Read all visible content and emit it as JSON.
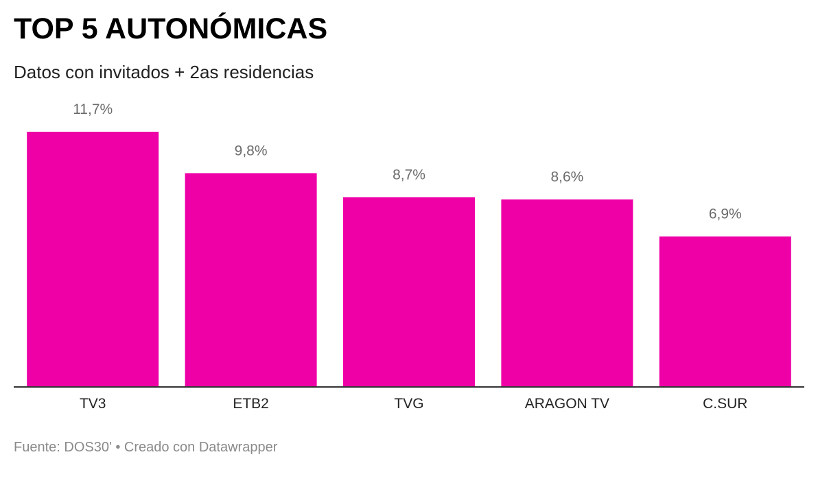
{
  "chart_data": {
    "type": "bar",
    "title": "TOP 5 AUTONÓMICAS",
    "subtitle": "Datos con invitados + 2as residencias",
    "categories": [
      "TV3",
      "ETB2",
      "TVG",
      "ARAGON TV",
      "C.SUR"
    ],
    "values": [
      11.7,
      9.8,
      8.7,
      8.6,
      6.9
    ],
    "value_labels": [
      "11,7%",
      "9,8%",
      "8,7%",
      "8,6%",
      "6,9%"
    ],
    "unit": "%",
    "xlabel": "",
    "ylabel": "",
    "ylim": [
      0,
      11.7
    ],
    "grid": false,
    "legend": "none",
    "bar_color": "#ee00a6"
  },
  "footer": {
    "source": "Fuente: DOS30' • Creado con Datawrapper"
  }
}
